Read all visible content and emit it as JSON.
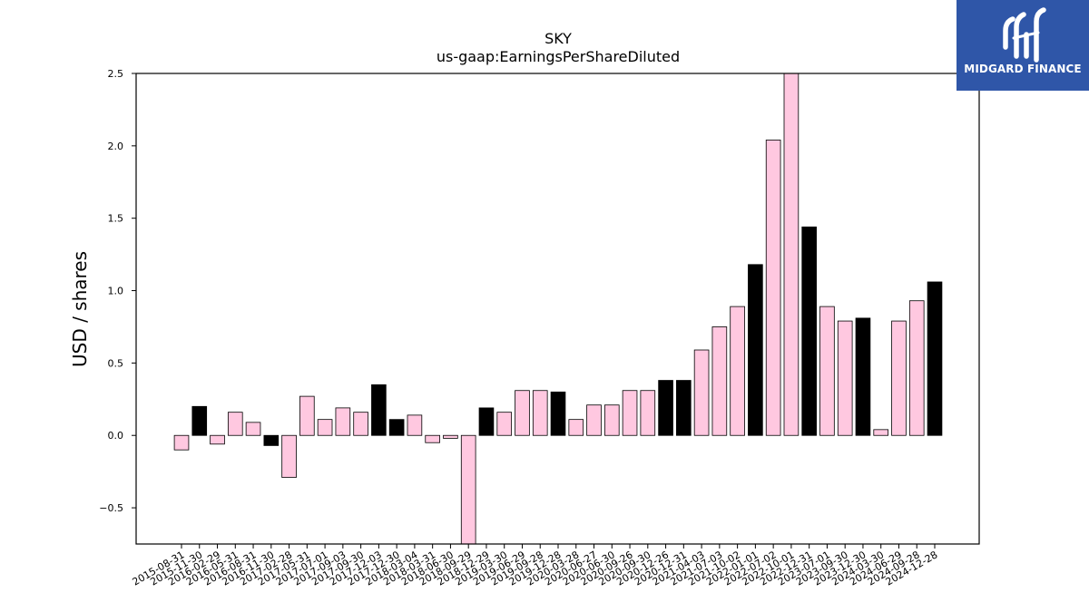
{
  "logo": {
    "text": "MIDGARD FINANCE"
  },
  "colors": {
    "positive": "#ffc8e0",
    "negative_or_alt": "#000000",
    "bar_edge": "#000000"
  },
  "chart_data": {
    "type": "bar",
    "title": "SKY",
    "subtitle": "us-gaap:EarningsPerShareDiluted",
    "ylabel": "USD / shares",
    "xlabel": "",
    "ylim": [
      -0.75,
      2.5
    ],
    "yticks": [
      -0.5,
      0.0,
      0.5,
      1.0,
      1.5,
      2.0,
      2.5
    ],
    "ytick_labels": [
      "−0.5",
      "0.0",
      "0.5",
      "1.0",
      "1.5",
      "2.0",
      "2.5"
    ],
    "grid": false,
    "categories": [
      "2015-08-31",
      "2015-11-30",
      "2016-02-29",
      "2016-05-31",
      "2016-08-31",
      "2016-11-30",
      "2017-02-28",
      "2017-05-31",
      "2017-07-01",
      "2017-09-03",
      "2017-09-30",
      "2017-12-03",
      "2017-12-30",
      "2018-03-04",
      "2018-03-31",
      "2018-06-30",
      "2018-09-29",
      "2018-12-29",
      "2019-03-30",
      "2019-06-29",
      "2019-09-28",
      "2019-12-28",
      "2020-03-28",
      "2020-06-27",
      "2020-06-30",
      "2020-09-26",
      "2020-09-30",
      "2020-12-26",
      "2020-12-31",
      "2021-04-03",
      "2021-07-03",
      "2021-10-02",
      "2022-01-01",
      "2022-07-02",
      "2022-10-01",
      "2022-12-31",
      "2023-07-01",
      "2023-09-30",
      "2023-12-30",
      "2024-03-30",
      "2024-06-29",
      "2024-09-28",
      "2024-12-28"
    ],
    "values": [
      -0.1,
      0.2,
      -0.06,
      0.16,
      0.09,
      -0.07,
      -0.29,
      0.27,
      0.11,
      0.19,
      0.16,
      0.35,
      0.11,
      0.14,
      -0.05,
      -0.02,
      -0.76,
      0.19,
      0.16,
      0.31,
      0.31,
      0.3,
      0.11,
      0.21,
      0.21,
      0.31,
      0.31,
      0.38,
      0.38,
      0.59,
      0.75,
      0.89,
      1.18,
      2.04,
      2.52,
      1.44,
      0.89,
      0.79,
      0.81,
      0.04,
      0.79,
      0.93,
      1.06
    ],
    "fills": [
      "pink",
      "black",
      "pink",
      "pink",
      "pink",
      "black",
      "pink",
      "pink",
      "pink",
      "pink",
      "pink",
      "black",
      "black",
      "pink",
      "pink",
      "pink",
      "pink",
      "black",
      "pink",
      "pink",
      "pink",
      "black",
      "pink",
      "pink",
      "pink",
      "pink",
      "pink",
      "black",
      "black",
      "pink",
      "pink",
      "pink",
      "black",
      "pink",
      "pink",
      "black",
      "pink",
      "pink",
      "black",
      "pink",
      "pink",
      "pink",
      "black"
    ]
  }
}
